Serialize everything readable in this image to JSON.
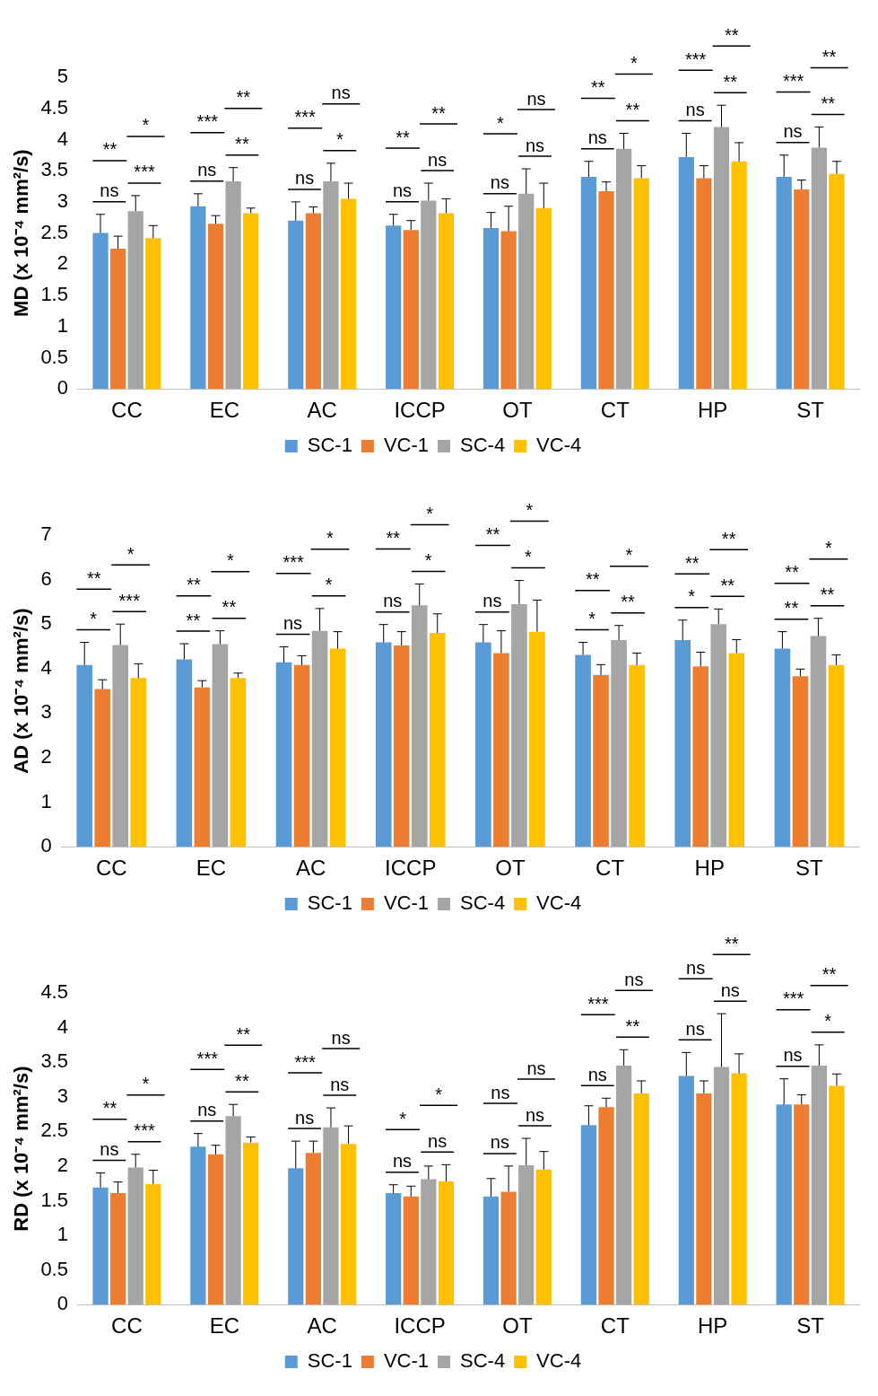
{
  "chart_data": [
    {
      "type": "bar",
      "ylabel": "MD (x 10⁻⁴ mm²/s)",
      "categories": [
        "CC",
        "EC",
        "AC",
        "ICCP",
        "OT",
        "CT",
        "HP",
        "ST"
      ],
      "ylim": [
        0,
        5
      ],
      "yticks": [
        0,
        0.5,
        1,
        1.5,
        2,
        2.5,
        3,
        3.5,
        4,
        4.5,
        5
      ],
      "grid": false,
      "legend": "bottom",
      "series": [
        {
          "name": "SC-1",
          "color": "#5b9bd5",
          "values": [
            2.5,
            2.93,
            2.7,
            2.62,
            2.58,
            3.4,
            3.72,
            3.4
          ],
          "errors": [
            [
              2.5,
              2.8
            ],
            [
              2.93,
              3.13
            ],
            [
              2.7,
              3.0
            ],
            [
              2.62,
              2.8
            ],
            [
              2.58,
              2.83
            ],
            [
              3.4,
              3.65
            ],
            [
              3.72,
              4.1
            ],
            [
              3.4,
              3.75
            ]
          ]
        },
        {
          "name": "VC-1",
          "color": "#ed7d31",
          "values": [
            2.25,
            2.65,
            2.82,
            2.55,
            2.53,
            3.17,
            3.38,
            3.2
          ],
          "errors": [
            [
              2.25,
              2.45
            ],
            [
              2.65,
              2.78
            ],
            [
              2.82,
              2.92
            ],
            [
              2.55,
              2.7
            ],
            [
              2.53,
              2.93
            ],
            [
              3.17,
              3.32
            ],
            [
              3.38,
              3.58
            ],
            [
              3.2,
              3.35
            ]
          ]
        },
        {
          "name": "SC-4",
          "color": "#a5a5a5",
          "values": [
            2.85,
            3.33,
            3.33,
            3.02,
            3.13,
            3.85,
            4.2,
            3.87
          ],
          "errors": [
            [
              2.85,
              3.1
            ],
            [
              3.33,
              3.55
            ],
            [
              3.33,
              3.62
            ],
            [
              3.02,
              3.3
            ],
            [
              3.13,
              3.53
            ],
            [
              3.85,
              4.1
            ],
            [
              4.2,
              4.55
            ],
            [
              3.87,
              4.2
            ]
          ]
        },
        {
          "name": "VC-4",
          "color": "#ffc000",
          "values": [
            2.42,
            2.82,
            3.05,
            2.82,
            2.9,
            3.38,
            3.65,
            3.45
          ],
          "errors": [
            [
              2.42,
              2.62
            ],
            [
              2.82,
              2.9
            ],
            [
              3.05,
              3.3
            ],
            [
              2.82,
              3.05
            ],
            [
              2.9,
              3.3
            ],
            [
              3.38,
              3.58
            ],
            [
              3.65,
              3.95
            ],
            [
              3.45,
              3.65
            ]
          ]
        }
      ],
      "annotations": [
        "ns",
        "**",
        "***",
        "*",
        "ns",
        "***",
        "**",
        "**",
        "ns",
        "***",
        "*",
        "ns",
        "ns",
        "**",
        "ns",
        "**",
        "ns",
        "*",
        "ns",
        "ns",
        "ns",
        "**",
        "**",
        "*",
        "ns",
        "***",
        "**",
        "**",
        "ns",
        "***",
        "**",
        "**"
      ]
    },
    {
      "type": "bar",
      "ylabel": "AD (x 10⁻⁴ mm²/s)",
      "categories": [
        "CC",
        "EC",
        "AC",
        "ICCP",
        "OT",
        "CT",
        "HP",
        "ST"
      ],
      "ylim": [
        0,
        7
      ],
      "yticks": [
        0,
        1,
        2,
        3,
        4,
        5,
        6,
        7
      ],
      "grid": false,
      "legend": "bottom",
      "series": [
        {
          "name": "SC-1",
          "color": "#5b9bd5",
          "values": [
            4.08,
            4.21,
            4.14,
            4.59,
            4.59,
            4.31,
            4.64,
            4.45
          ],
          "errors": [
            [
              4.08,
              4.59
            ],
            [
              4.21,
              4.56
            ],
            [
              4.14,
              4.49
            ],
            [
              4.59,
              4.99
            ],
            [
              4.59,
              4.99
            ],
            [
              4.31,
              4.59
            ],
            [
              4.64,
              5.09
            ],
            [
              4.45,
              4.83
            ]
          ]
        },
        {
          "name": "VC-1",
          "color": "#ed7d31",
          "values": [
            3.54,
            3.58,
            4.08,
            4.52,
            4.35,
            3.86,
            4.05,
            3.83
          ],
          "errors": [
            [
              3.54,
              3.75
            ],
            [
              3.58,
              3.73
            ],
            [
              4.08,
              4.29
            ],
            [
              4.52,
              4.83
            ],
            [
              4.35,
              4.85
            ],
            [
              3.86,
              4.09
            ],
            [
              4.05,
              4.37
            ],
            [
              3.83,
              3.99
            ]
          ]
        },
        {
          "name": "SC-4",
          "color": "#a5a5a5",
          "values": [
            4.53,
            4.55,
            4.85,
            5.42,
            5.45,
            4.64,
            5.0,
            4.73
          ],
          "errors": [
            [
              4.53,
              5.0
            ],
            [
              4.55,
              4.85
            ],
            [
              4.85,
              5.35
            ],
            [
              5.42,
              5.9
            ],
            [
              5.45,
              5.98
            ],
            [
              4.64,
              4.97
            ],
            [
              5.0,
              5.34
            ],
            [
              4.73,
              5.13
            ]
          ]
        },
        {
          "name": "VC-4",
          "color": "#ffc000",
          "values": [
            3.79,
            3.79,
            4.45,
            4.8,
            4.83,
            4.08,
            4.35,
            4.08
          ],
          "errors": [
            [
              3.79,
              4.11
            ],
            [
              3.79,
              3.9
            ],
            [
              4.45,
              4.83
            ],
            [
              4.8,
              5.23
            ],
            [
              4.83,
              5.54
            ],
            [
              4.08,
              4.35
            ],
            [
              4.35,
              4.65
            ],
            [
              4.08,
              4.31
            ]
          ]
        }
      ],
      "annotations": [
        "*",
        "**",
        "***",
        "*",
        "**",
        "**",
        "**",
        "*",
        "ns",
        "***",
        "*",
        "*",
        "ns",
        "**",
        "*",
        "*",
        "ns",
        "**",
        "*",
        "*",
        "*",
        "**",
        "**",
        "*",
        "*",
        "**",
        "**",
        "**",
        "**",
        "**",
        "**",
        "*"
      ]
    },
    {
      "type": "bar",
      "ylabel": "RD (x 10⁻⁴ mm²/s)",
      "categories": [
        "CC",
        "EC",
        "AC",
        "ICCP",
        "OT",
        "CT",
        "HP",
        "ST"
      ],
      "ylim": [
        0,
        4.5
      ],
      "yticks": [
        0,
        0.5,
        1,
        1.5,
        2,
        2.5,
        3,
        3.5,
        4,
        4.5
      ],
      "grid": false,
      "legend": "bottom",
      "series": [
        {
          "name": "SC-1",
          "color": "#5b9bd5",
          "values": [
            1.69,
            2.28,
            1.97,
            1.61,
            1.56,
            2.59,
            3.3,
            2.89
          ],
          "errors": [
            [
              1.69,
              1.9
            ],
            [
              2.28,
              2.47
            ],
            [
              1.97,
              2.36
            ],
            [
              1.61,
              1.73
            ],
            [
              1.56,
              1.82
            ],
            [
              2.59,
              2.87
            ],
            [
              3.3,
              3.64
            ],
            [
              2.89,
              3.26
            ]
          ]
        },
        {
          "name": "VC-1",
          "color": "#ed7d31",
          "values": [
            1.61,
            2.17,
            2.19,
            1.56,
            1.63,
            2.85,
            3.05,
            2.89
          ],
          "errors": [
            [
              1.61,
              1.77
            ],
            [
              2.17,
              2.3
            ],
            [
              2.19,
              2.36
            ],
            [
              1.56,
              1.71
            ],
            [
              1.63,
              2.0
            ],
            [
              2.85,
              2.98
            ],
            [
              3.05,
              3.23
            ],
            [
              2.89,
              3.03
            ]
          ]
        },
        {
          "name": "SC-4",
          "color": "#a5a5a5",
          "values": [
            1.98,
            2.72,
            2.56,
            1.81,
            2.01,
            3.45,
            3.43,
            3.45
          ],
          "errors": [
            [
              1.98,
              2.17
            ],
            [
              2.72,
              2.89
            ],
            [
              2.56,
              2.84
            ],
            [
              1.81,
              2.0
            ],
            [
              2.01,
              2.4
            ],
            [
              3.45,
              3.68
            ],
            [
              3.43,
              4.2
            ],
            [
              3.45,
              3.75
            ]
          ]
        },
        {
          "name": "VC-4",
          "color": "#ffc000",
          "values": [
            1.74,
            2.34,
            2.32,
            1.78,
            1.95,
            3.05,
            3.34,
            3.16
          ],
          "errors": [
            [
              1.74,
              1.94
            ],
            [
              2.34,
              2.42
            ],
            [
              2.32,
              2.58
            ],
            [
              1.78,
              2.02
            ],
            [
              1.95,
              2.21
            ],
            [
              3.05,
              3.23
            ],
            [
              3.34,
              3.62
            ],
            [
              3.16,
              3.33
            ]
          ]
        }
      ],
      "annotations": [
        "ns",
        "**",
        "***",
        "*",
        "ns",
        "***",
        "**",
        "**",
        "ns",
        "***",
        "ns",
        "ns",
        "ns",
        "*",
        "ns",
        "*",
        "ns",
        "ns",
        "ns",
        "ns",
        "ns",
        "***",
        "**",
        "ns",
        "ns",
        "ns",
        "ns",
        "**",
        "ns",
        "***",
        "*",
        "**"
      ]
    }
  ]
}
